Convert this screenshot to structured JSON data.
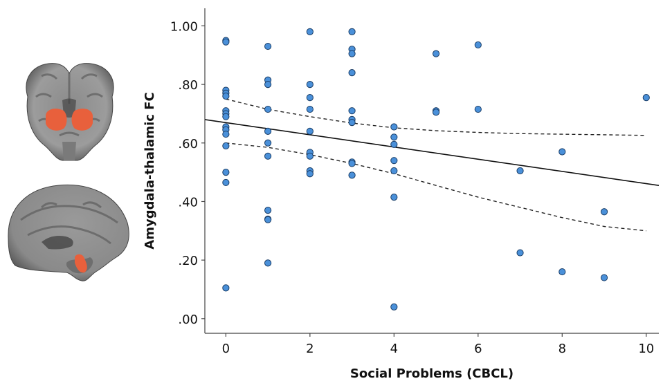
{
  "chart_data": {
    "type": "scatter",
    "title": "",
    "xlabel": "Social Problems (CBCL)",
    "ylabel": "Amygdala-thalamic FC",
    "xlim": [
      -0.5,
      10.3
    ],
    "ylim": [
      -0.05,
      1.06
    ],
    "x_ticks": [
      "0",
      "2",
      "4",
      "6",
      "8",
      "10"
    ],
    "y_ticks": [
      ".00",
      ".20",
      ".40",
      ".60",
      ".80",
      "1.00"
    ],
    "grid": false,
    "legend": "none",
    "point_color": "#4a90d9",
    "fit_line": {
      "x": [
        -0.5,
        10.3
      ],
      "y": [
        0.68,
        0.455
      ]
    },
    "ci_upper": {
      "x": [
        0,
        1,
        2,
        3,
        4,
        5,
        6,
        7,
        8,
        9,
        10
      ],
      "y": [
        0.75,
        0.715,
        0.69,
        0.668,
        0.652,
        0.642,
        0.636,
        0.632,
        0.63,
        0.628,
        0.626
      ]
    },
    "ci_lower": {
      "x": [
        0,
        1,
        2,
        3,
        4,
        5,
        6,
        7,
        8,
        9,
        10
      ],
      "y": [
        0.6,
        0.585,
        0.56,
        0.53,
        0.495,
        0.455,
        0.415,
        0.38,
        0.345,
        0.315,
        0.3
      ]
    },
    "points": [
      {
        "x": 0,
        "y": 0.95
      },
      {
        "x": 0,
        "y": 0.945
      },
      {
        "x": 0,
        "y": 0.78
      },
      {
        "x": 0,
        "y": 0.77
      },
      {
        "x": 0,
        "y": 0.76
      },
      {
        "x": 0,
        "y": 0.71
      },
      {
        "x": 0,
        "y": 0.7
      },
      {
        "x": 0,
        "y": 0.69
      },
      {
        "x": 0,
        "y": 0.655
      },
      {
        "x": 0,
        "y": 0.645
      },
      {
        "x": 0,
        "y": 0.63
      },
      {
        "x": 0,
        "y": 0.59
      },
      {
        "x": 0,
        "y": 0.5
      },
      {
        "x": 0,
        "y": 0.465
      },
      {
        "x": 0,
        "y": 0.105
      },
      {
        "x": 1,
        "y": 0.93
      },
      {
        "x": 1,
        "y": 0.815
      },
      {
        "x": 1,
        "y": 0.8
      },
      {
        "x": 1,
        "y": 0.715
      },
      {
        "x": 1,
        "y": 0.64
      },
      {
        "x": 1,
        "y": 0.6
      },
      {
        "x": 1,
        "y": 0.555
      },
      {
        "x": 1,
        "y": 0.37
      },
      {
        "x": 1,
        "y": 0.34
      },
      {
        "x": 1,
        "y": 0.338
      },
      {
        "x": 1,
        "y": 0.19
      },
      {
        "x": 2,
        "y": 0.98
      },
      {
        "x": 2,
        "y": 0.8
      },
      {
        "x": 2,
        "y": 0.755
      },
      {
        "x": 2,
        "y": 0.715
      },
      {
        "x": 2,
        "y": 0.64
      },
      {
        "x": 2,
        "y": 0.568
      },
      {
        "x": 2,
        "y": 0.555
      },
      {
        "x": 2,
        "y": 0.505
      },
      {
        "x": 2,
        "y": 0.495
      },
      {
        "x": 3,
        "y": 0.98
      },
      {
        "x": 3,
        "y": 0.92
      },
      {
        "x": 3,
        "y": 0.905
      },
      {
        "x": 3,
        "y": 0.84
      },
      {
        "x": 3,
        "y": 0.71
      },
      {
        "x": 3,
        "y": 0.68
      },
      {
        "x": 3,
        "y": 0.67
      },
      {
        "x": 3,
        "y": 0.535
      },
      {
        "x": 3,
        "y": 0.53
      },
      {
        "x": 3,
        "y": 0.49
      },
      {
        "x": 4,
        "y": 0.655
      },
      {
        "x": 4,
        "y": 0.62
      },
      {
        "x": 4,
        "y": 0.595
      },
      {
        "x": 4,
        "y": 0.54
      },
      {
        "x": 4,
        "y": 0.505
      },
      {
        "x": 4,
        "y": 0.415
      },
      {
        "x": 4,
        "y": 0.04
      },
      {
        "x": 5,
        "y": 0.905
      },
      {
        "x": 5,
        "y": 0.71
      },
      {
        "x": 5,
        "y": 0.705
      },
      {
        "x": 6,
        "y": 0.935
      },
      {
        "x": 6,
        "y": 0.715
      },
      {
        "x": 7,
        "y": 0.505
      },
      {
        "x": 7,
        "y": 0.225
      },
      {
        "x": 8,
        "y": 0.57
      },
      {
        "x": 8,
        "y": 0.16
      },
      {
        "x": 9,
        "y": 0.365
      },
      {
        "x": 9,
        "y": 0.14
      },
      {
        "x": 10,
        "y": 0.755
      }
    ]
  },
  "brain_images": {
    "highlight_color": "#e8603c",
    "views": [
      "coronal-slice",
      "sagittal-slice"
    ]
  }
}
